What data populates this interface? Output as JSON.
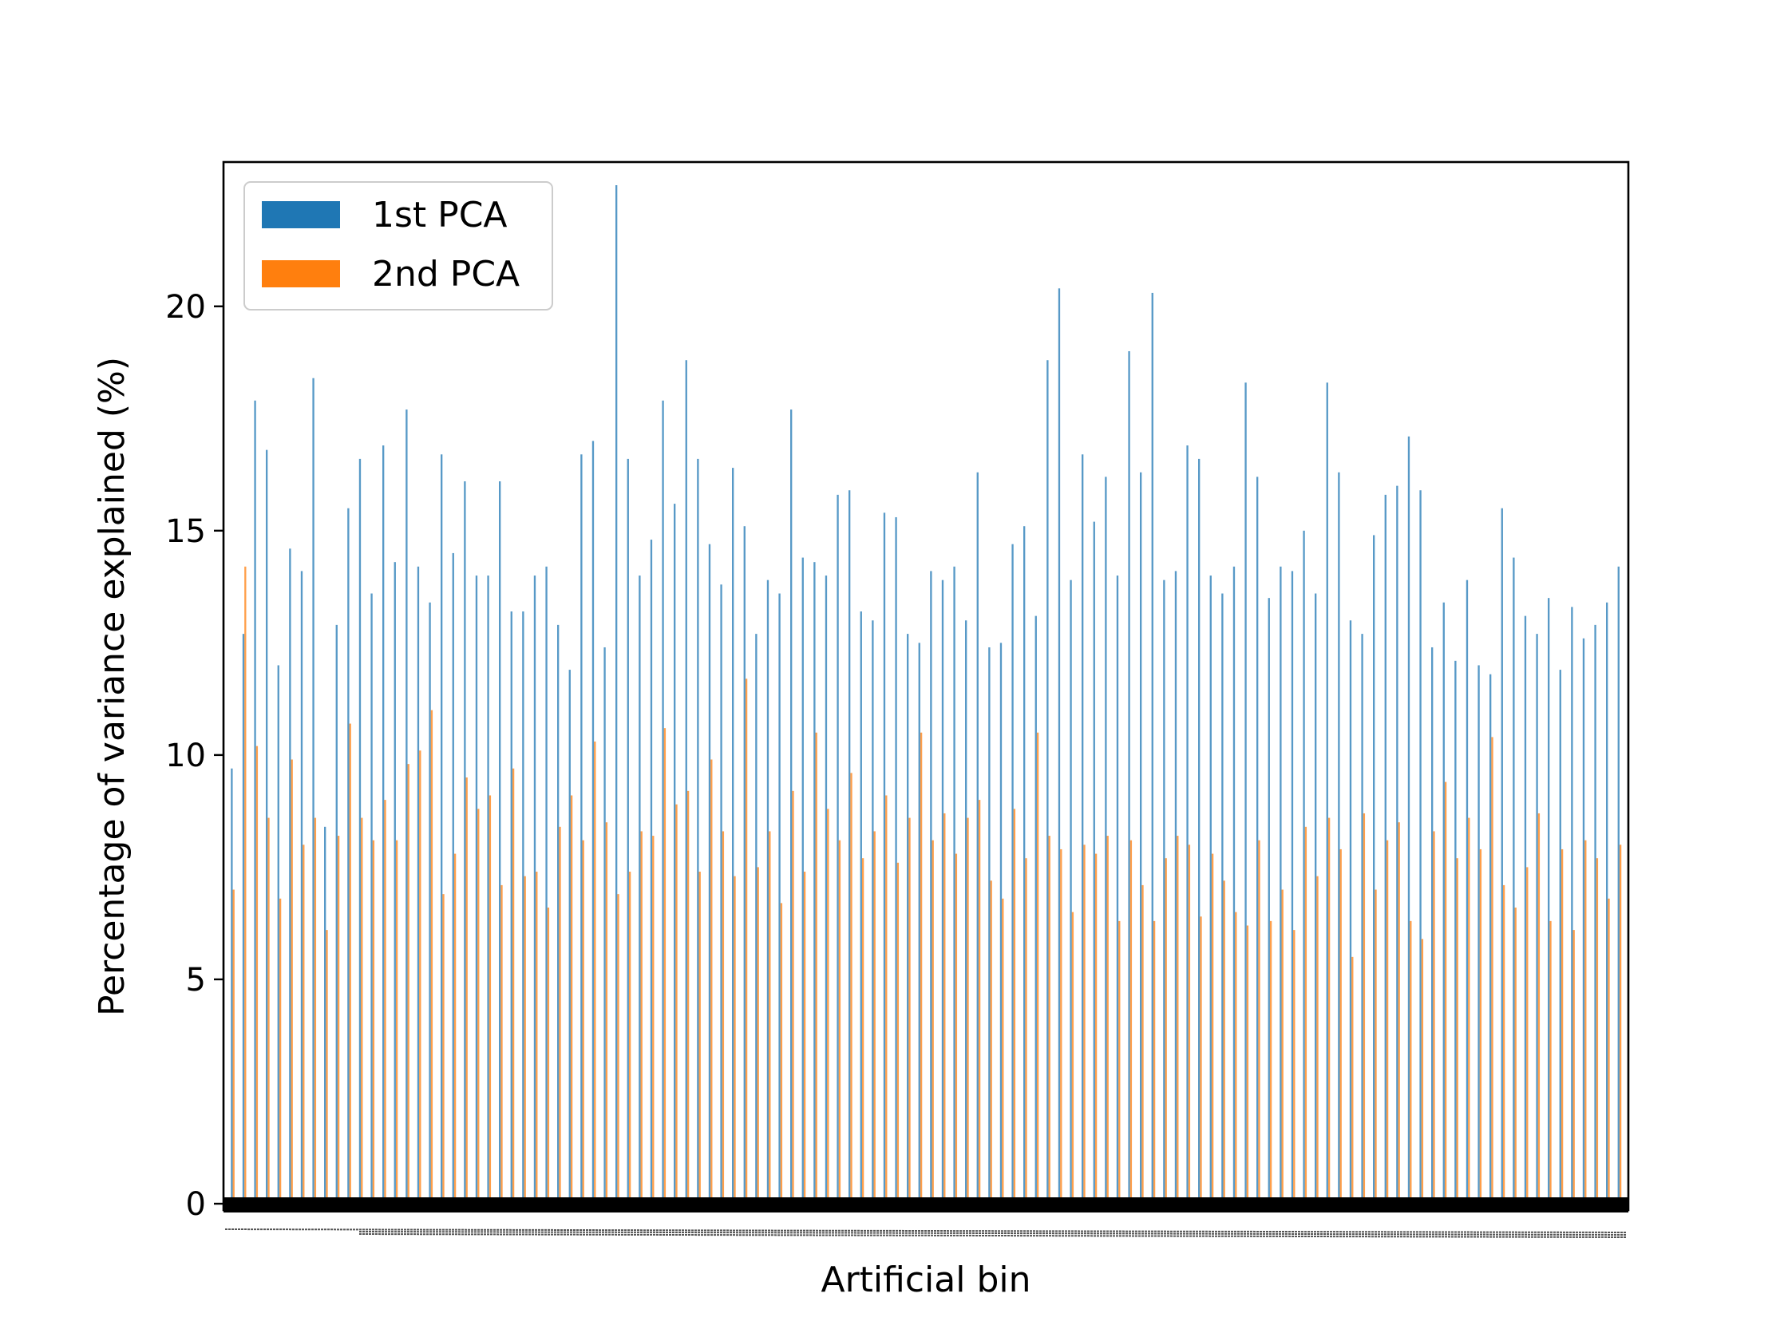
{
  "chart_data": {
    "type": "bar",
    "xlabel": "Artificial bin",
    "ylabel": "Percentage of variance explained (%)",
    "ylim": [
      0,
      24
    ],
    "yticks": [
      0,
      5,
      10,
      15,
      20
    ],
    "x_tick_labels": "dense, unreadable (one tick per bin)",
    "legend": {
      "placement": "top-left",
      "entries": [
        "1st PCA",
        "2nd PCA"
      ]
    },
    "grid": false,
    "num_categories": 120,
    "series": [
      {
        "name": "1st PCA",
        "color": "#1f77b4",
        "values": [
          9.7,
          12.7,
          17.9,
          16.8,
          12.0,
          14.6,
          14.1,
          18.4,
          8.4,
          12.9,
          15.5,
          16.6,
          13.6,
          16.9,
          14.3,
          17.7,
          14.2,
          13.4,
          16.7,
          14.5,
          16.1,
          14.0,
          14.0,
          16.1,
          13.2,
          13.2,
          14.0,
          14.2,
          12.9,
          11.9,
          16.7,
          17.0,
          12.4,
          22.7,
          16.6,
          14.0,
          14.8,
          17.9,
          15.6,
          18.8,
          16.6,
          14.7,
          13.8,
          16.4,
          15.1,
          12.7,
          13.9,
          13.6,
          17.7,
          14.4,
          14.3,
          14.0,
          15.8,
          15.9,
          13.2,
          13.0,
          15.4,
          15.3,
          12.7,
          12.5,
          14.1,
          13.9,
          14.2,
          13.0,
          16.3,
          12.4,
          12.5,
          14.7,
          15.1,
          13.1,
          18.8,
          20.4,
          13.9,
          16.7,
          15.2,
          16.2,
          14.0,
          19.0,
          16.3,
          20.3,
          13.9,
          14.1,
          16.9,
          16.6,
          14.0,
          13.6,
          14.2,
          18.3,
          16.2,
          13.5,
          14.2,
          14.1,
          15.0,
          13.6,
          18.3,
          16.3,
          13.0,
          12.7,
          14.9,
          15.8,
          16.0,
          17.1,
          15.9,
          12.4,
          13.4,
          12.1,
          13.9,
          12.0,
          11.8,
          15.5,
          14.4,
          13.1,
          12.7,
          13.5,
          11.9,
          13.3,
          12.6,
          12.9,
          13.4,
          14.2
        ]
      },
      {
        "name": "2nd PCA",
        "color": "#ff7f0e",
        "values": [
          7.0,
          14.2,
          10.2,
          8.6,
          6.8,
          9.9,
          8.0,
          8.6,
          6.1,
          8.2,
          10.7,
          8.6,
          8.1,
          9.0,
          8.1,
          9.8,
          10.1,
          11.0,
          6.9,
          7.8,
          9.5,
          8.8,
          9.1,
          7.1,
          9.7,
          7.3,
          7.4,
          6.6,
          8.4,
          9.1,
          8.1,
          10.3,
          8.5,
          6.9,
          7.4,
          8.3,
          8.2,
          10.6,
          8.9,
          9.2,
          7.4,
          9.9,
          8.3,
          7.3,
          11.7,
          7.5,
          8.3,
          6.7,
          9.2,
          7.4,
          10.5,
          8.8,
          8.1,
          9.6,
          7.7,
          8.3,
          9.1,
          7.6,
          8.6,
          10.5,
          8.1,
          8.7,
          7.8,
          8.6,
          9.0,
          7.2,
          6.8,
          8.8,
          7.7,
          10.5,
          8.2,
          7.9,
          6.5,
          8.0,
          7.8,
          8.2,
          6.3,
          8.1,
          7.1,
          6.3,
          7.7,
          8.2,
          8.0,
          6.4,
          7.8,
          7.2,
          6.5,
          6.2,
          8.1,
          6.3,
          7.0,
          6.1,
          8.4,
          7.3,
          8.6,
          7.9,
          5.5,
          8.7,
          7.0,
          8.1,
          8.5,
          6.3,
          5.9,
          8.3,
          9.4,
          7.7,
          8.6,
          7.9,
          10.4,
          7.1,
          6.6,
          7.5,
          8.7,
          6.3,
          7.9,
          6.1,
          8.1,
          7.7,
          6.8,
          8.0
        ]
      }
    ]
  }
}
